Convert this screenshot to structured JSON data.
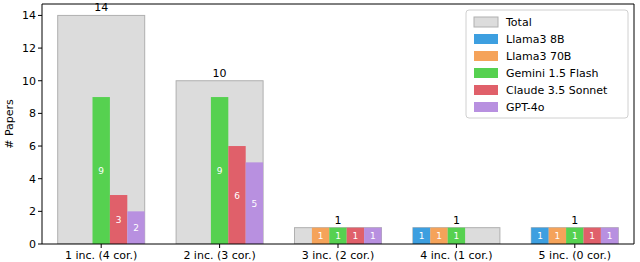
{
  "chart_data": {
    "type": "bar",
    "y_label": "# Papers",
    "categories": [
      "1 inc. (4 cor.)",
      "2 inc. (3 cor.)",
      "3 inc. (2 cor.)",
      "4 inc. (1 cor.)",
      "5 inc. (0 cor.)"
    ],
    "series": [
      {
        "name": "Total",
        "color": "#dcdcdc",
        "values": [
          14,
          10,
          1,
          1,
          1
        ]
      },
      {
        "name": "Llama3 8B",
        "color": "#3d9fe0",
        "values": [
          0,
          0,
          0,
          1,
          1
        ]
      },
      {
        "name": "Llama3 70B",
        "color": "#f5a35a",
        "values": [
          0,
          0,
          1,
          1,
          1
        ]
      },
      {
        "name": "Gemini 1.5 Flash",
        "color": "#56d150",
        "values": [
          9,
          9,
          1,
          1,
          1
        ]
      },
      {
        "name": "Claude 3.5 Sonnet",
        "color": "#e0606a",
        "values": [
          3,
          6,
          1,
          0,
          1
        ]
      },
      {
        "name": "GPT-4o",
        "color": "#b890e0",
        "values": [
          2,
          5,
          1,
          0,
          1
        ]
      }
    ],
    "ylim": [
      0,
      14.7
    ],
    "yticks": [
      0,
      2,
      4,
      6,
      8,
      10,
      12,
      14
    ],
    "grid": false,
    "legend": "upper right",
    "data_labels": true
  }
}
